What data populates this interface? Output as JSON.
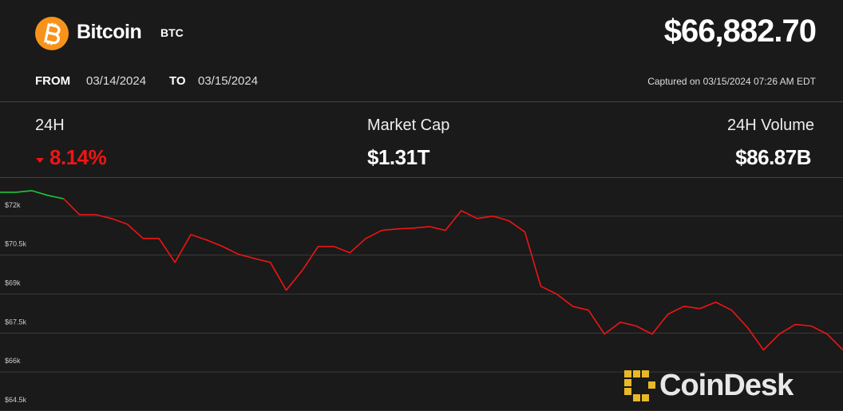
{
  "header": {
    "name": "Bitcoin",
    "symbol": "BTC",
    "price": "$66,882.70",
    "from_label": "FROM",
    "from_date": "03/14/2024",
    "to_label": "TO",
    "to_date": "03/15/2024",
    "captured": "Captured on 03/15/2024 07:26 AM EDT"
  },
  "stats": [
    {
      "label": "24H",
      "value": "8.14%"
    },
    {
      "label": "Market Cap",
      "value": "$1.31T"
    },
    {
      "label": "24H Volume",
      "value": "$86.87B"
    }
  ],
  "brand": "CoinDesk",
  "chart_data": {
    "type": "line",
    "series": [
      {
        "color": "#1fc53c",
        "values": [
          72920,
          72920,
          72980,
          72800,
          72670,
          null,
          null,
          null,
          null,
          null,
          null,
          null,
          null,
          null,
          null,
          null,
          null,
          null,
          null,
          null,
          null,
          null,
          null,
          null,
          null,
          null,
          null,
          null,
          null,
          null,
          null,
          null,
          null,
          null,
          null,
          null,
          null,
          null,
          null,
          null,
          null,
          null,
          null,
          null,
          null,
          null,
          null,
          null,
          null,
          null,
          null,
          null,
          null,
          null
        ]
      },
      {
        "color": "#f01414",
        "values": [
          null,
          null,
          null,
          null,
          72670,
          72060,
          72060,
          71910,
          71690,
          71140,
          71140,
          70220,
          71290,
          71080,
          70830,
          70530,
          70370,
          70220,
          69150,
          69910,
          70830,
          70830,
          70590,
          71140,
          71450,
          71510,
          71540,
          71600,
          71450,
          72210,
          71910,
          72000,
          71820,
          71390,
          69300,
          69000,
          68530,
          68380,
          67460,
          67920,
          67770,
          67460,
          68230,
          68530,
          68440,
          68690,
          68380,
          67710,
          66850,
          67460,
          67830,
          67770,
          67460,
          66850
        ]
      }
    ],
    "ylim": [
      64500,
      73500
    ],
    "yticks": [
      {
        "value": 72000,
        "label": "$72k"
      },
      {
        "value": 70500,
        "label": "$70.5k"
      },
      {
        "value": 69000,
        "label": "$69k"
      },
      {
        "value": 67500,
        "label": "$67.5k"
      },
      {
        "value": 66000,
        "label": "$66k"
      },
      {
        "value": 64500,
        "label": "$64.5k"
      }
    ],
    "grid": true
  }
}
